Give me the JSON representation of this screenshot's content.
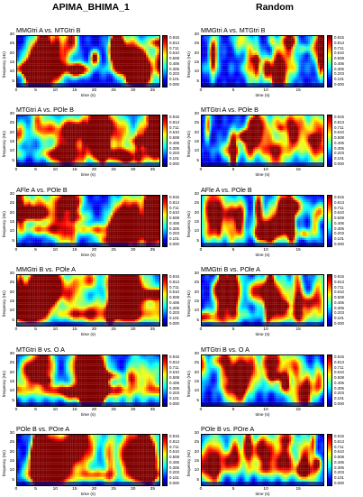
{
  "header": {
    "left_title": "APIMA_BHIMA_1",
    "right_title": "Random"
  },
  "panel_labels": {
    "ylabel": "frequency (Hz)",
    "xlabel": "time (s)"
  },
  "colorbar": {
    "ticks": [
      "0.915",
      "0.813",
      "0.711",
      "0.610",
      "0.508",
      "0.406",
      "0.305",
      "0.203",
      "0.101",
      "0.000"
    ],
    "colors": [
      "#00007f",
      "#0000ff",
      "#0080ff",
      "#00ffff",
      "#80ff80",
      "#ffff00",
      "#ff8000",
      "#ff0000",
      "#7f0000"
    ]
  },
  "chart_data": [
    {
      "type": "heatmap",
      "title": "MMGtri A vs. MTGtri B",
      "xlim": [
        0,
        37
      ],
      "ylim": [
        2,
        30
      ],
      "xticks": [
        "0",
        "5",
        "10",
        "15",
        "20",
        "25",
        "30",
        "35"
      ],
      "yticks": [
        "30",
        "25",
        "20",
        "15",
        "10",
        "5"
      ],
      "colorbar_range": [
        0,
        0.915
      ]
    },
    {
      "type": "heatmap",
      "title": "MMGtri A vs. MTGtri B",
      "xlim": [
        0,
        19
      ],
      "ylim": [
        2,
        30
      ],
      "xticks": [
        "0",
        "5",
        "10",
        "15"
      ],
      "yticks": [
        "30",
        "25",
        "20",
        "15",
        "10",
        "5"
      ],
      "colorbar_range": [
        0,
        0.915
      ]
    },
    {
      "type": "heatmap",
      "title": "MTGtri A vs. POle B",
      "xlim": [
        0,
        37
      ],
      "ylim": [
        2,
        30
      ],
      "xticks": [
        "0",
        "5",
        "10",
        "15",
        "20",
        "25",
        "30",
        "35"
      ],
      "yticks": [
        "30",
        "25",
        "20",
        "15",
        "10",
        "5"
      ],
      "colorbar_range": [
        0,
        0.915
      ]
    },
    {
      "type": "heatmap",
      "title": "MTGtri A vs. POle B",
      "xlim": [
        0,
        19
      ],
      "ylim": [
        2,
        30
      ],
      "xticks": [
        "0",
        "5",
        "10",
        "15"
      ],
      "yticks": [
        "30",
        "25",
        "20",
        "15",
        "10",
        "5"
      ],
      "colorbar_range": [
        0,
        0.915
      ]
    },
    {
      "type": "heatmap",
      "title": "AFle A vs. POle B",
      "xlim": [
        0,
        37
      ],
      "ylim": [
        2,
        30
      ],
      "xticks": [
        "0",
        "5",
        "10",
        "15",
        "20",
        "25",
        "30",
        "35"
      ],
      "yticks": [
        "30",
        "25",
        "20",
        "15",
        "10",
        "5"
      ],
      "colorbar_range": [
        0,
        0.915
      ]
    },
    {
      "type": "heatmap",
      "title": "AFle A vs. POle B",
      "xlim": [
        0,
        19
      ],
      "ylim": [
        2,
        30
      ],
      "xticks": [
        "0",
        "5",
        "10",
        "15"
      ],
      "yticks": [
        "30",
        "25",
        "20",
        "15",
        "10",
        "5"
      ],
      "colorbar_range": [
        0,
        0.915
      ]
    },
    {
      "type": "heatmap",
      "title": "MMGtri B vs. POle A",
      "xlim": [
        0,
        37
      ],
      "ylim": [
        2,
        30
      ],
      "xticks": [
        "0",
        "5",
        "10",
        "15",
        "20",
        "25",
        "30",
        "35"
      ],
      "yticks": [
        "30",
        "25",
        "20",
        "15",
        "10",
        "5"
      ],
      "colorbar_range": [
        0,
        0.915
      ]
    },
    {
      "type": "heatmap",
      "title": "MMGtri B vs. POle A",
      "xlim": [
        0,
        19
      ],
      "ylim": [
        2,
        30
      ],
      "xticks": [
        "0",
        "5",
        "10",
        "15"
      ],
      "yticks": [
        "30",
        "25",
        "20",
        "15",
        "10",
        "5"
      ],
      "colorbar_range": [
        0,
        0.915
      ]
    },
    {
      "type": "heatmap",
      "title": "MTGtri B vs. O A",
      "xlim": [
        0,
        37
      ],
      "ylim": [
        2,
        30
      ],
      "xticks": [
        "0",
        "5",
        "10",
        "15",
        "20",
        "25",
        "30",
        "35"
      ],
      "yticks": [
        "30",
        "25",
        "20",
        "15",
        "10",
        "5"
      ],
      "colorbar_range": [
        0,
        0.915
      ]
    },
    {
      "type": "heatmap",
      "title": "MTGtri B vs. O A",
      "xlim": [
        0,
        19
      ],
      "ylim": [
        2,
        30
      ],
      "xticks": [
        "0",
        "5",
        "10",
        "15"
      ],
      "yticks": [
        "30",
        "25",
        "20",
        "15",
        "10",
        "5"
      ],
      "colorbar_range": [
        0,
        0.915
      ]
    },
    {
      "type": "heatmap",
      "title": "POle B vs. POre A",
      "xlim": [
        0,
        37
      ],
      "ylim": [
        2,
        30
      ],
      "xticks": [
        "0",
        "5",
        "10",
        "15",
        "20",
        "25",
        "30",
        "35"
      ],
      "yticks": [
        "30",
        "25",
        "20",
        "15",
        "10",
        "5"
      ],
      "colorbar_range": [
        0,
        0.915
      ]
    },
    {
      "type": "heatmap",
      "title": "POle B vs. POre A",
      "xlim": [
        0,
        19
      ],
      "ylim": [
        2,
        30
      ],
      "xticks": [
        "0",
        "5",
        "10",
        "15"
      ],
      "yticks": [
        "30",
        "25",
        "20",
        "15",
        "10",
        "5"
      ],
      "colorbar_range": [
        0,
        0.915
      ]
    }
  ]
}
